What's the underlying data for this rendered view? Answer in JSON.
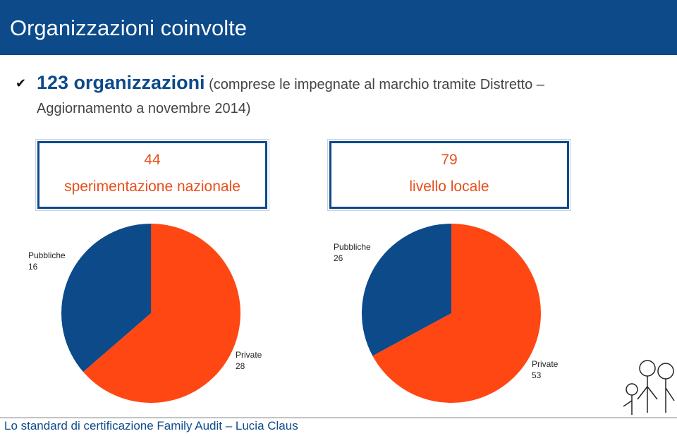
{
  "header": {
    "title": "Organizzazioni coinvolte"
  },
  "bullet": {
    "highlight": "123 organizzazioni",
    "text_line1": "(comprese le impegnate al marchio tramite Distretto –",
    "text_line2": "Aggiornamento a novembre 2014)"
  },
  "boxes": [
    {
      "number": 44,
      "label": "sperimentazione nazionale"
    },
    {
      "number": 79,
      "label": "livello locale"
    }
  ],
  "chart_data": [
    {
      "type": "pie",
      "categories": [
        "Pubbliche",
        "Private"
      ],
      "values": [
        16,
        28
      ],
      "colors": [
        "#0d4a8a",
        "#ff4713"
      ]
    },
    {
      "type": "pie",
      "categories": [
        "Pubbliche",
        "Private"
      ],
      "values": [
        26,
        53
      ],
      "colors": [
        "#0d4a8a",
        "#ff4713"
      ]
    }
  ],
  "footer": {
    "text": "Lo standard di certificazione Family Audit – Lucia Claus"
  }
}
